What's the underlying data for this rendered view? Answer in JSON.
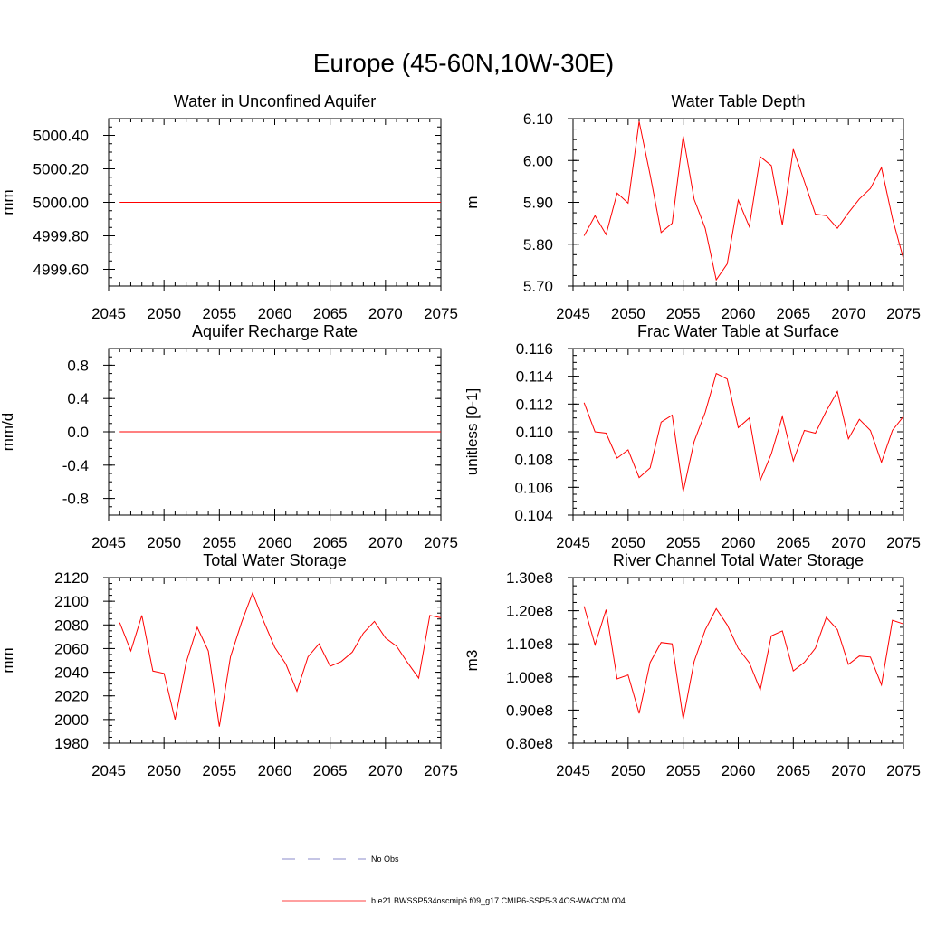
{
  "page": {
    "title": "Europe (45-60N,10W-30E)"
  },
  "colors": {
    "model": "#ff0000",
    "obs": "#6666bb",
    "axis": "#000000"
  },
  "legend": {
    "obs_label": "No Obs",
    "model_label": "b.e21.BWSSP534oscmip6.f09_g17.CMIP6-SSP5-3.4OS-WACCM.004"
  },
  "chart_data": [
    {
      "type": "line",
      "title": "Water in Unconfined Aquifer",
      "ylabel": "mm",
      "xlim": [
        2045,
        2075
      ],
      "ylim": [
        4999.5,
        5000.5
      ],
      "xticks": [
        2045,
        2050,
        2055,
        2060,
        2065,
        2070,
        2075
      ],
      "yticks": [
        4999.6,
        4999.8,
        5000.0,
        5000.2,
        5000.4
      ],
      "ytick_labels": [
        "4999.60",
        "4999.80",
        "5000.00",
        "5000.20",
        "5000.40"
      ],
      "x": [
        2046,
        2047,
        2048,
        2049,
        2050,
        2051,
        2052,
        2053,
        2054,
        2055,
        2056,
        2057,
        2058,
        2059,
        2060,
        2061,
        2062,
        2063,
        2064,
        2065,
        2066,
        2067,
        2068,
        2069,
        2070,
        2071,
        2072,
        2073,
        2074,
        2075
      ],
      "series": [
        {
          "name": "b.e21.BWSSP534oscmip6.f09_g17.CMIP6-SSP5-3.4OS-WACCM.004",
          "values": [
            5000,
            5000,
            5000,
            5000,
            5000,
            5000,
            5000,
            5000,
            5000,
            5000,
            5000,
            5000,
            5000,
            5000,
            5000,
            5000,
            5000,
            5000,
            5000,
            5000,
            5000,
            5000,
            5000,
            5000,
            5000,
            5000,
            5000,
            5000,
            5000,
            5000
          ]
        }
      ]
    },
    {
      "type": "line",
      "title": "Water Table Depth",
      "ylabel": "m",
      "xlim": [
        2045,
        2075
      ],
      "ylim": [
        5.7,
        6.1
      ],
      "xticks": [
        2045,
        2050,
        2055,
        2060,
        2065,
        2070,
        2075
      ],
      "yticks": [
        5.7,
        5.8,
        5.9,
        6.0,
        6.1
      ],
      "ytick_labels": [
        "5.70",
        "5.80",
        "5.90",
        "6.00",
        "6.10"
      ],
      "x": [
        2046,
        2047,
        2048,
        2049,
        2050,
        2051,
        2052,
        2053,
        2054,
        2055,
        2056,
        2057,
        2058,
        2059,
        2060,
        2061,
        2062,
        2063,
        2064,
        2065,
        2066,
        2067,
        2068,
        2069,
        2070,
        2071,
        2072,
        2073,
        2074,
        2075
      ],
      "series": [
        {
          "name": "b.e21.BWSSP534oscmip6.f09_g17.CMIP6-SSP5-3.4OS-WACCM.004",
          "values": [
            5.82,
            5.868,
            5.823,
            5.922,
            5.898,
            6.093,
            5.965,
            5.828,
            5.85,
            6.058,
            5.907,
            5.838,
            5.715,
            5.753,
            5.905,
            5.842,
            6.009,
            5.988,
            5.846,
            6.027,
            5.95,
            5.872,
            5.868,
            5.838,
            5.875,
            5.908,
            5.933,
            5.983,
            5.862,
            5.765
          ]
        }
      ]
    },
    {
      "type": "line",
      "title": "Aquifer Recharge Rate",
      "ylabel": "mm/d",
      "xlim": [
        2045,
        2075
      ],
      "ylim": [
        -1.0,
        1.0
      ],
      "xticks": [
        2045,
        2050,
        2055,
        2060,
        2065,
        2070,
        2075
      ],
      "yticks": [
        -0.8,
        -0.4,
        0.0,
        0.4,
        0.8
      ],
      "ytick_labels": [
        "-0.8",
        "-0.4",
        "0.0",
        "0.4",
        "0.8"
      ],
      "x": [
        2046,
        2047,
        2048,
        2049,
        2050,
        2051,
        2052,
        2053,
        2054,
        2055,
        2056,
        2057,
        2058,
        2059,
        2060,
        2061,
        2062,
        2063,
        2064,
        2065,
        2066,
        2067,
        2068,
        2069,
        2070,
        2071,
        2072,
        2073,
        2074,
        2075
      ],
      "series": [
        {
          "name": "b.e21.BWSSP534oscmip6.f09_g17.CMIP6-SSP5-3.4OS-WACCM.004",
          "values": [
            0,
            0,
            0,
            0,
            0,
            0,
            0,
            0,
            0,
            0,
            0,
            0,
            0,
            0,
            0,
            0,
            0,
            0,
            0,
            0,
            0,
            0,
            0,
            0,
            0,
            0,
            0,
            0,
            0,
            0
          ]
        }
      ]
    },
    {
      "type": "line",
      "title": "Frac Water Table at Surface",
      "ylabel": "unitless [0-1]",
      "xlim": [
        2045,
        2075
      ],
      "ylim": [
        0.104,
        0.116
      ],
      "xticks": [
        2045,
        2050,
        2055,
        2060,
        2065,
        2070,
        2075
      ],
      "yticks": [
        0.104,
        0.106,
        0.108,
        0.11,
        0.112,
        0.114,
        0.116
      ],
      "ytick_labels": [
        "0.104",
        "0.106",
        "0.108",
        "0.110",
        "0.112",
        "0.114",
        "0.116"
      ],
      "x": [
        2046,
        2047,
        2048,
        2049,
        2050,
        2051,
        2052,
        2053,
        2054,
        2055,
        2056,
        2057,
        2058,
        2059,
        2060,
        2061,
        2062,
        2063,
        2064,
        2065,
        2066,
        2067,
        2068,
        2069,
        2070,
        2071,
        2072,
        2073,
        2074,
        2075
      ],
      "series": [
        {
          "name": "b.e21.BWSSP534oscmip6.f09_g17.CMIP6-SSP5-3.4OS-WACCM.004",
          "values": [
            0.1121,
            0.11,
            0.1099,
            0.1081,
            0.1087,
            0.1067,
            0.1074,
            0.1107,
            0.1112,
            0.1057,
            0.1093,
            0.1114,
            0.1142,
            0.1138,
            0.1103,
            0.111,
            0.1065,
            0.1084,
            0.1111,
            0.1079,
            0.1101,
            0.1099,
            0.1115,
            0.1129,
            0.1095,
            0.1109,
            0.1101,
            0.1078,
            0.1101,
            0.1111
          ]
        }
      ]
    },
    {
      "type": "line",
      "title": "Total Water Storage",
      "ylabel": "mm",
      "xlim": [
        2045,
        2075
      ],
      "ylim": [
        1980,
        2120
      ],
      "xticks": [
        2045,
        2050,
        2055,
        2060,
        2065,
        2070,
        2075
      ],
      "yticks": [
        1980,
        2000,
        2020,
        2040,
        2060,
        2080,
        2100,
        2120
      ],
      "ytick_labels": [
        "1980",
        "2000",
        "2020",
        "2040",
        "2060",
        "2080",
        "2100",
        "2120"
      ],
      "x": [
        2046,
        2047,
        2048,
        2049,
        2050,
        2051,
        2052,
        2053,
        2054,
        2055,
        2056,
        2057,
        2058,
        2059,
        2060,
        2061,
        2062,
        2063,
        2064,
        2065,
        2066,
        2067,
        2068,
        2069,
        2070,
        2071,
        2072,
        2073,
        2074,
        2075
      ],
      "series": [
        {
          "name": "b.e21.BWSSP534oscmip6.f09_g17.CMIP6-SSP5-3.4OS-WACCM.004",
          "values": [
            2082,
            2058,
            2088,
            2041,
            2039,
            2000,
            2048,
            2078,
            2058,
            1994,
            2053,
            2082,
            2107,
            2083,
            2061,
            2047,
            2024,
            2053,
            2064,
            2045,
            2049,
            2057,
            2073,
            2083,
            2069,
            2062,
            2048,
            2035,
            2088,
            2086
          ]
        }
      ]
    },
    {
      "type": "line",
      "title": "River Channel Total Water Storage",
      "ylabel": "m3",
      "xlim": [
        2045,
        2075
      ],
      "ylim": [
        0.8,
        1.3
      ],
      "y_unit_suffix": "e8",
      "xticks": [
        2045,
        2050,
        2055,
        2060,
        2065,
        2070,
        2075
      ],
      "yticks": [
        0.8,
        0.9,
        1.0,
        1.1,
        1.2,
        1.3
      ],
      "ytick_labels": [
        "0.80e8",
        "0.90e8",
        "1.00e8",
        "1.10e8",
        "1.20e8",
        "1.30e8"
      ],
      "x": [
        2046,
        2047,
        2048,
        2049,
        2050,
        2051,
        2052,
        2053,
        2054,
        2055,
        2056,
        2057,
        2058,
        2059,
        2060,
        2061,
        2062,
        2063,
        2064,
        2065,
        2066,
        2067,
        2068,
        2069,
        2070,
        2071,
        2072,
        2073,
        2074,
        2075
      ],
      "series": [
        {
          "name": "b.e21.BWSSP534oscmip6.f09_g17.CMIP6-SSP5-3.4OS-WACCM.004",
          "values": [
            1.213,
            1.097,
            1.203,
            0.994,
            1.006,
            0.89,
            1.044,
            1.104,
            1.1,
            0.873,
            1.047,
            1.142,
            1.206,
            1.157,
            1.086,
            1.043,
            0.961,
            1.124,
            1.139,
            1.018,
            1.044,
            1.087,
            1.18,
            1.143,
            1.038,
            1.063,
            1.06,
            0.976,
            1.171,
            1.16
          ]
        }
      ]
    }
  ]
}
